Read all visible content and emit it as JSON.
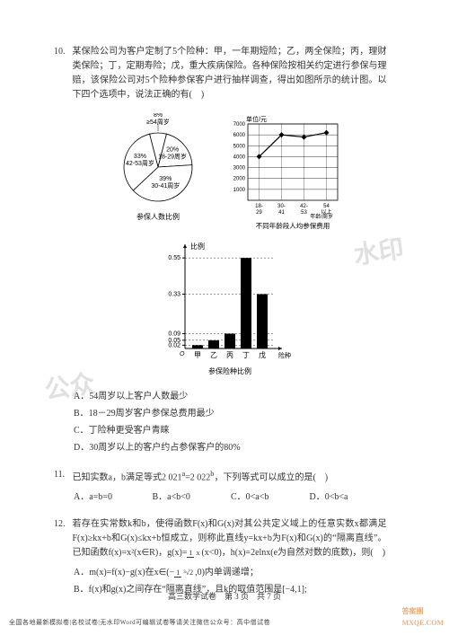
{
  "q10": {
    "num": "10.",
    "text": "某保险公司为客户定制了5个险种：甲，一年期短险；乙，两全保险；丙，理财类保险；丁，定期寿险；戊，重大疾病保险。各种保险按相关约定进行参保与理赔，该保险公司对5个险种参保客户进行抽样调查，得出如图所示的统计图。以下四个选项中，说法正确的有(　)",
    "pie": {
      "title": "参保人数比例",
      "segments": [
        {
          "label": "8%\\n≥54周岁",
          "value": 8,
          "color": "#ffffff"
        },
        {
          "label": "20%\\n18-29周岁",
          "value": 20,
          "color": "#ffffff"
        },
        {
          "label": "39%\\n30-41周岁",
          "value": 39,
          "color": "#ffffff"
        },
        {
          "label": "33%\\n42-53周岁",
          "value": 33,
          "color": "#ffffff"
        }
      ],
      "stroke": "#000000"
    },
    "line": {
      "title": "不同年龄段人均参保费用",
      "ylabel": "单位/元",
      "xlabel": "年龄/周岁",
      "xcats": [
        "18-\\n29",
        "30-\\n41",
        "42-\\n53",
        "54\\n以上"
      ],
      "yvals": [
        4000,
        6000,
        5800,
        6200
      ],
      "yticks": [
        1000,
        2000,
        3000,
        4000,
        5000,
        6000,
        7000
      ],
      "ylim": [
        0,
        7000
      ],
      "line_color": "#000000",
      "marker": "diamond",
      "grid_color": "#000000"
    },
    "bar": {
      "title": "参保险种比例",
      "ylabel": "比例",
      "xcats": [
        "甲",
        "乙",
        "丙",
        "丁",
        "戊"
      ],
      "xcats_label": "险种",
      "yvals": [
        0.02,
        0.05,
        0.09,
        0.55,
        0.33
      ],
      "yticks": [
        0.02,
        0.05,
        0.09,
        0.33,
        0.55
      ],
      "ylim": [
        0,
        0.6
      ],
      "bar_color": "#000000",
      "axis_color": "#000000"
    },
    "options": {
      "A": "A．54周岁以上客户人数最少",
      "B": "B．18－29周岁客户参保总费用最少",
      "C": "C．丁险种更受客户青睐",
      "D": "D．30周岁以上的客户约占参保客户的80%"
    }
  },
  "q11": {
    "num": "11.",
    "text_pre": "已知实数a，b满足等式2 021",
    "text_mid": "=2 022",
    "text_post": "，下列等式可以成立的是(　)",
    "options": {
      "A": "A．a=b=0",
      "B": "B．a<b<0",
      "C": "C．0<a<b",
      "D": "D．0<b<a"
    }
  },
  "q12": {
    "num": "12.",
    "text": "若存在实常数k和b，使得函数F(x)和G(x)对其公共定义域上的任意实数x都满足 F(x)≥kx+b和G(x)≤kx+b恒成立，则称此直线y=kx+b为F(x)和G(x)的“隔离直线”。已知函数f(x)=x²(x∈R)，g(x)=",
    "text2": "(x<0)，h(x)=2elnx(e为自然对数的底数)，则(　)",
    "options": {
      "A_pre": "A．m(x)=f(x)−g(x)在x∈(−",
      "A_post": ",0)内单调递增；",
      "B": "B．f(x)和g(x)之间存在“隔离直线”，且k的取值范围是[−4,1];"
    }
  },
  "footer": "高三数学试卷　第 3 页　共 7 页",
  "bottom_note": "全国各地最新模拟卷|名校试卷|无水印Word可编辑试卷等请关注微信公众号：高中僧试卷",
  "watermark1": "水印",
  "watermark2": "公众"
}
